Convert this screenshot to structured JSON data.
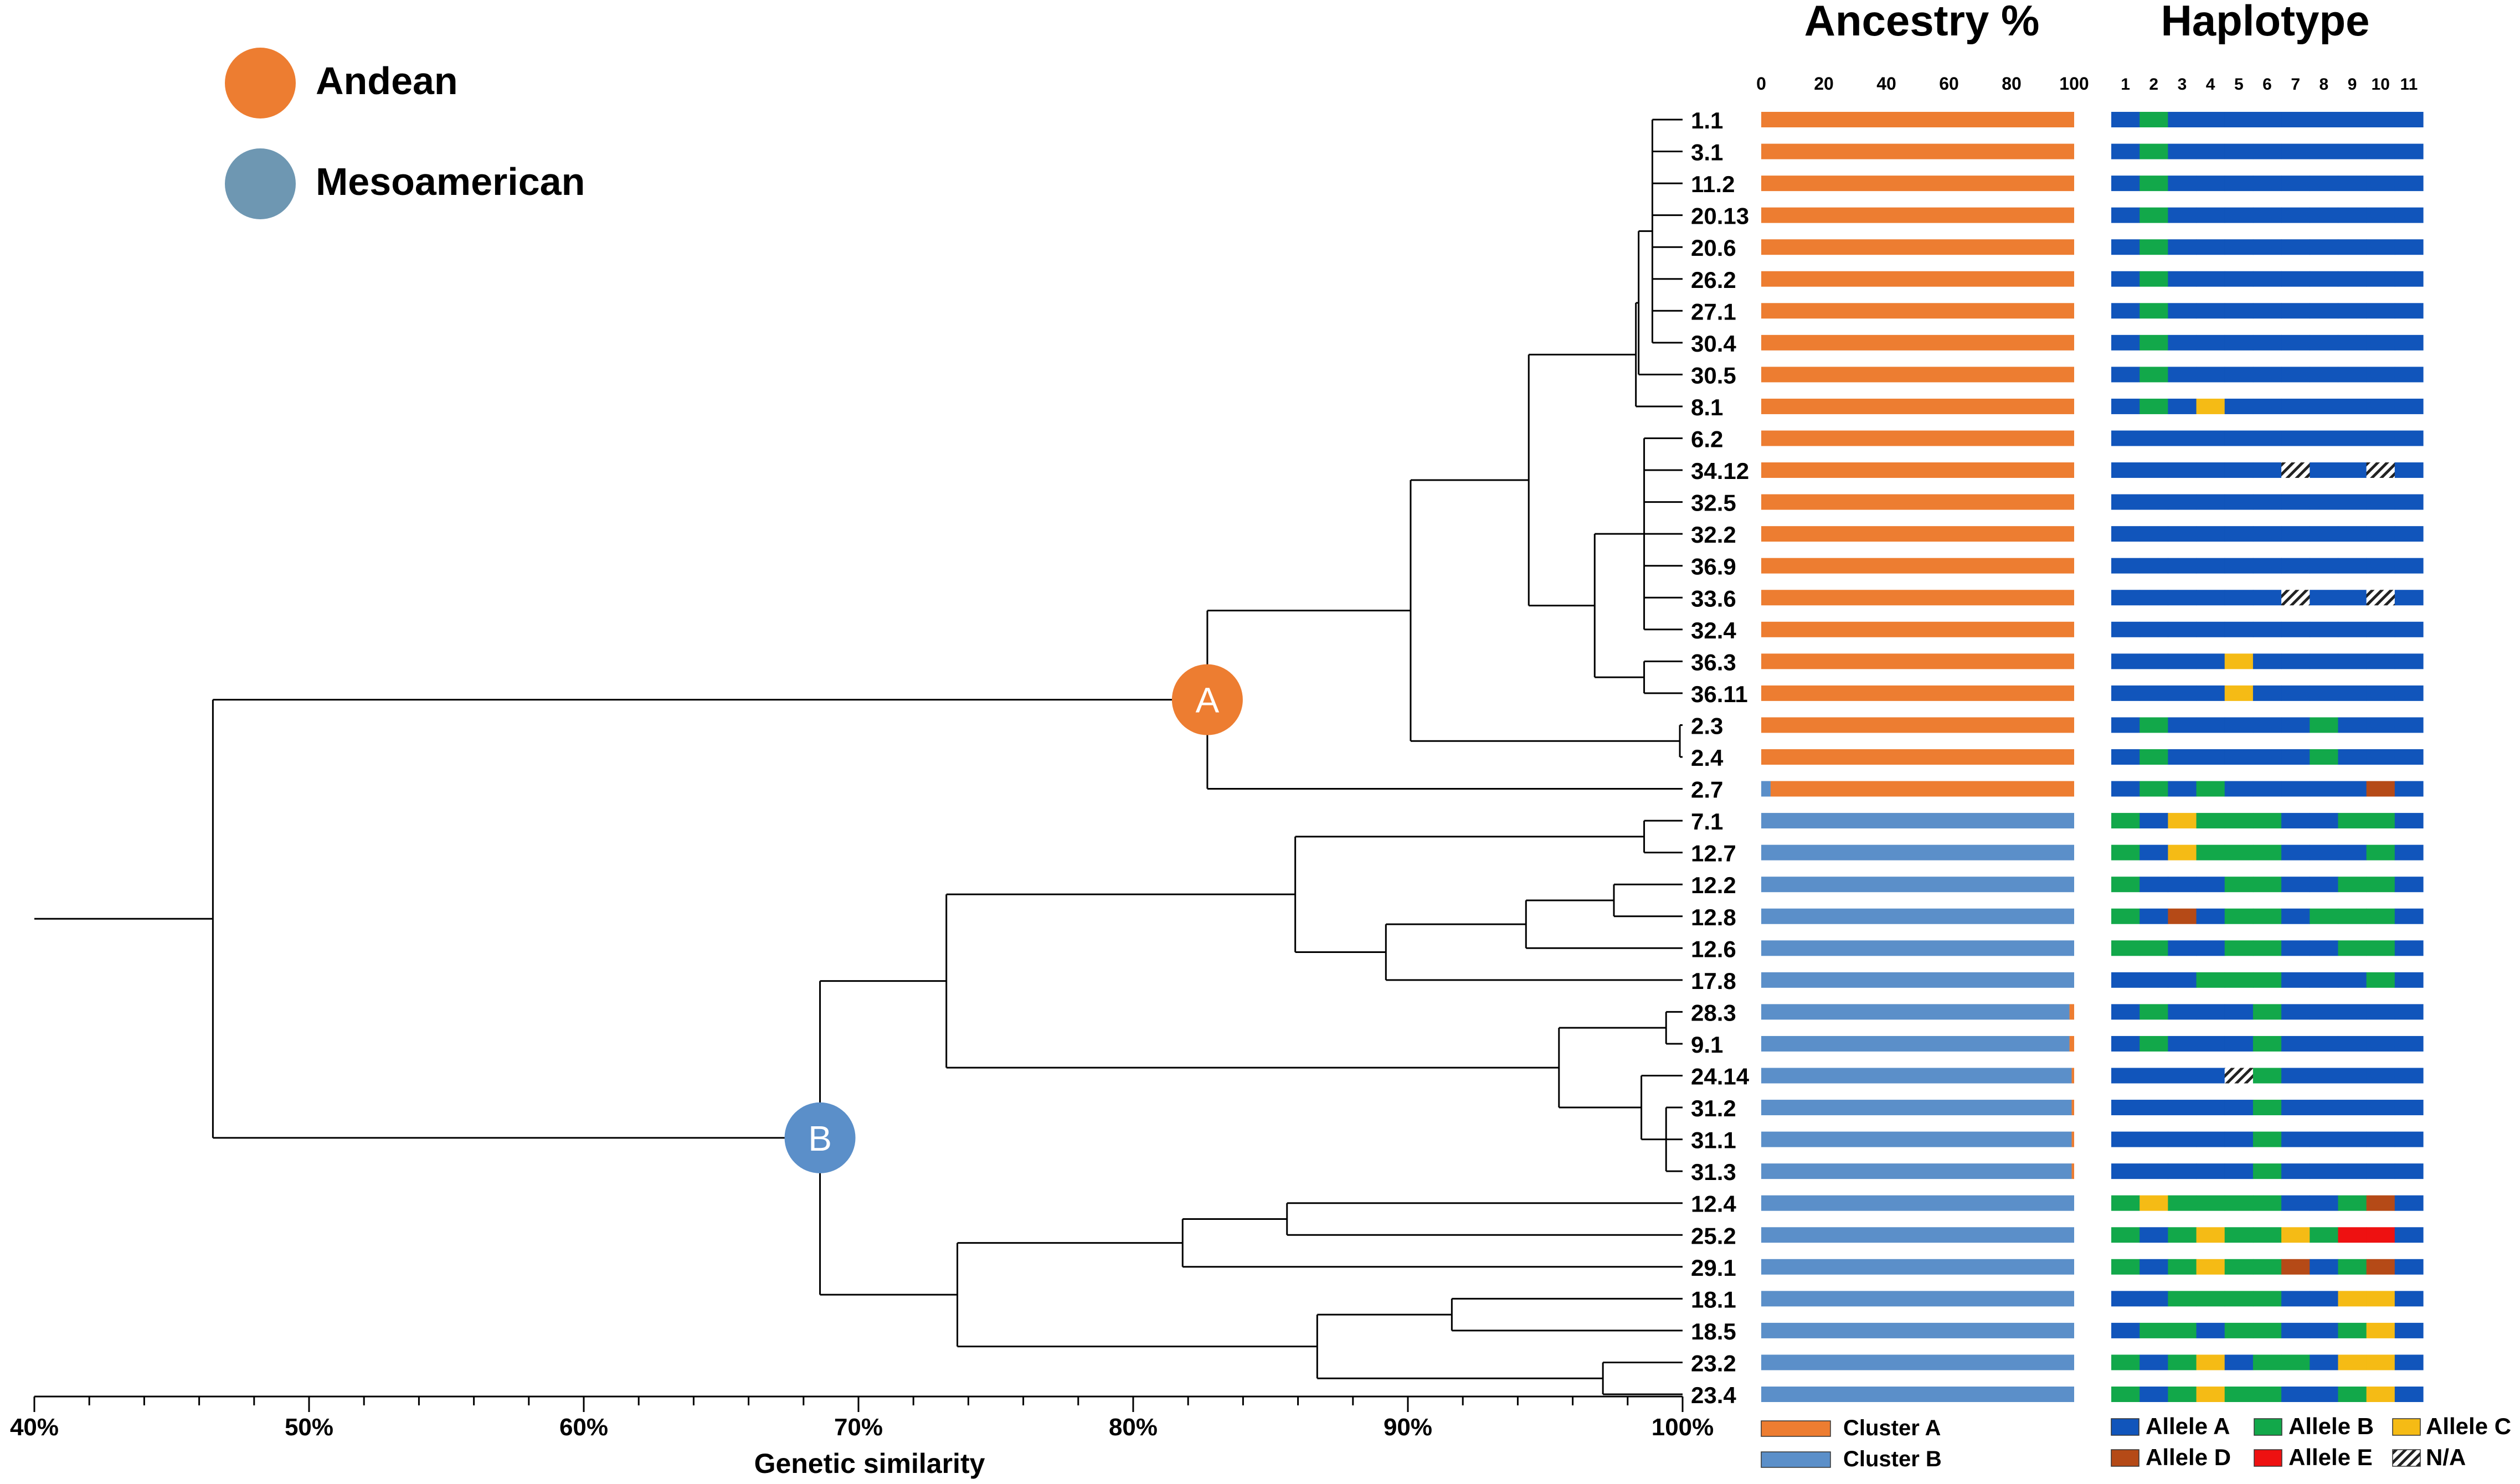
{
  "colors": {
    "andean": "#ED7D31",
    "meso": "#5B8FC9",
    "legend_meso": "#6E97B2",
    "allele_a": "#1155BB",
    "allele_b": "#12A84A",
    "allele_c": "#F5BB15",
    "allele_d": "#B54A17",
    "allele_e": "#EE1111"
  },
  "legend": {
    "andean": "Andean",
    "meso": "Mesoamerican"
  },
  "chart_data": {
    "type": "dendrogram",
    "titles": {
      "ancestry": "Ancestry %",
      "haplotype": "Haplotype"
    },
    "xlabel": "Genetic similarity",
    "xlim": [
      40,
      100
    ],
    "x_ticks": [
      "40%",
      "50%",
      "60%",
      "70%",
      "80%",
      "90%",
      "100%"
    ],
    "ancestry_ticks": [
      "0",
      "20",
      "40",
      "60",
      "80",
      "100"
    ],
    "haplotype_positions": [
      "1",
      "2",
      "3",
      "4",
      "5",
      "6",
      "7",
      "8",
      "9",
      "10",
      "11"
    ],
    "ancestry_legend": [
      "Cluster A",
      "Cluster B"
    ],
    "allele_legend": [
      "Allele A",
      "Allele B",
      "Allele C",
      "Allele D",
      "Allele E",
      "N/A"
    ],
    "cluster_nodes": [
      {
        "label": "A",
        "similarity": 82.7,
        "color": "andean"
      },
      {
        "label": "B",
        "similarity": 68.6,
        "color": "meso"
      }
    ],
    "root_similarity": 46.5,
    "tree": [
      46.5,
      [
        82.7,
        [
          90.1,
          [
            94.4,
            [
              98.3,
              [
                98.4,
                [
                  98.9,
                  "1.1",
                  "3.1",
                  "11.2",
                  "20.13",
                  "20.6",
                  "26.2",
                  "27.1",
                  "30.4"
                ],
                "30.5"
              ],
              "8.1"
            ],
            [
              96.8,
              [
                98.6,
                "6.2",
                "34.12",
                "32.5",
                "32.2",
                "36.9",
                "33.6",
                "32.4"
              ],
              [
                98.6,
                "36.3",
                "36.11"
              ]
            ]
          ],
          [
            99.9,
            "2.3",
            "2.4"
          ]
        ],
        "2.7"
      ],
      [
        68.6,
        [
          73.2,
          [
            85.9,
            [
              98.6,
              "7.1",
              "12.7"
            ],
            [
              89.2,
              [
                94.3,
                [
                  97.5,
                  "12.2",
                  "12.8"
                ],
                "12.6"
              ],
              "17.8"
            ]
          ],
          [
            95.5,
            [
              99.4,
              "28.3",
              "9.1"
            ],
            [
              98.5,
              "24.14",
              [
                99.4,
                "31.2",
                "31.1",
                "31.3"
              ]
            ]
          ]
        ],
        [
          73.6,
          [
            81.8,
            [
              85.6,
              "12.4",
              "25.2"
            ],
            "29.1"
          ],
          [
            86.7,
            [
              91.6,
              "18.1",
              "18.5"
            ],
            [
              97.1,
              "23.2",
              "23.4"
            ]
          ]
        ]
      ]
    ],
    "samples": [
      {
        "id": "1.1",
        "andean": 100,
        "hap": "ABAAAAAAAAA"
      },
      {
        "id": "3.1",
        "andean": 100,
        "hap": "ABAAAAAAAAA"
      },
      {
        "id": "11.2",
        "andean": 100,
        "hap": "ABAAAAAAAAA"
      },
      {
        "id": "20.13",
        "andean": 100,
        "hap": "ABAAAAAAAAA"
      },
      {
        "id": "20.6",
        "andean": 100,
        "hap": "ABAAAAAAAAA"
      },
      {
        "id": "26.2",
        "andean": 100,
        "hap": "ABAAAAAAAAA"
      },
      {
        "id": "27.1",
        "andean": 100,
        "hap": "ABAAAAAAAAA"
      },
      {
        "id": "30.4",
        "andean": 100,
        "hap": "ABAAAAAAAAA"
      },
      {
        "id": "30.5",
        "andean": 100,
        "hap": "ABAAAAAAAAA"
      },
      {
        "id": "8.1",
        "andean": 100,
        "hap": "ABACAAAAAAA"
      },
      {
        "id": "6.2",
        "andean": 100,
        "hap": "AAAAAAAAAAA"
      },
      {
        "id": "34.12",
        "andean": 100,
        "hap": "AAAAAANAANA"
      },
      {
        "id": "32.5",
        "andean": 100,
        "hap": "AAAAAAAAAAA"
      },
      {
        "id": "32.2",
        "andean": 100,
        "hap": "AAAAAAAAAAA"
      },
      {
        "id": "36.9",
        "andean": 100,
        "hap": "AAAAAAAAAAA"
      },
      {
        "id": "33.6",
        "andean": 100,
        "hap": "AAAAAANAANA"
      },
      {
        "id": "32.4",
        "andean": 100,
        "hap": "AAAAAAAAAAA"
      },
      {
        "id": "36.3",
        "andean": 100,
        "hap": "AAAACAAAAAA"
      },
      {
        "id": "36.11",
        "andean": 100,
        "hap": "AAAACAAAAAA"
      },
      {
        "id": "2.3",
        "andean": 100,
        "hap": "ABAAAAABAAA"
      },
      {
        "id": "2.4",
        "andean": 100,
        "hap": "ABAAAAABAAA"
      },
      {
        "id": "2.7",
        "andean": 97,
        "hap": "ABABAAAAADA"
      },
      {
        "id": "7.1",
        "andean": 0,
        "hap": "BACBBBAABBA"
      },
      {
        "id": "12.7",
        "andean": 0,
        "hap": "BACBBBAAABA"
      },
      {
        "id": "12.2",
        "andean": 0,
        "hap": "BAAABBAABBA"
      },
      {
        "id": "12.8",
        "andean": 0,
        "hap": "BADABBABBBA"
      },
      {
        "id": "12.6",
        "andean": 0,
        "hap": "BBAABBAABBA"
      },
      {
        "id": "17.8",
        "andean": 0,
        "hap": "AAABBBAAABA"
      },
      {
        "id": "28.3",
        "andean": 1.5,
        "hap": "ABAAABAAAAA"
      },
      {
        "id": "9.1",
        "andean": 1.5,
        "hap": "ABAAABAAAAA"
      },
      {
        "id": "24.14",
        "andean": 0.8,
        "hap": "AAAANBAAAAA"
      },
      {
        "id": "31.2",
        "andean": 0.8,
        "hap": "AAAAABAAAAA"
      },
      {
        "id": "31.1",
        "andean": 0.8,
        "hap": "AAAAABAAAAA"
      },
      {
        "id": "31.3",
        "andean": 0.8,
        "hap": "AAAAABAAAAA"
      },
      {
        "id": "12.4",
        "andean": 0,
        "hap": "BCBBBBAABDA"
      },
      {
        "id": "25.2",
        "andean": 0,
        "hap": "BABCBBCBEEA"
      },
      {
        "id": "29.1",
        "andean": 0,
        "hap": "BABCBBDABDA"
      },
      {
        "id": "18.1",
        "andean": 0,
        "hap": "AABBBBAACCA"
      },
      {
        "id": "18.5",
        "andean": 0,
        "hap": "ABBABBAABCA"
      },
      {
        "id": "23.2",
        "andean": 0,
        "hap": "BABCABBACCA"
      },
      {
        "id": "23.4",
        "andean": 0,
        "hap": "BABCBBAABCA"
      }
    ]
  }
}
